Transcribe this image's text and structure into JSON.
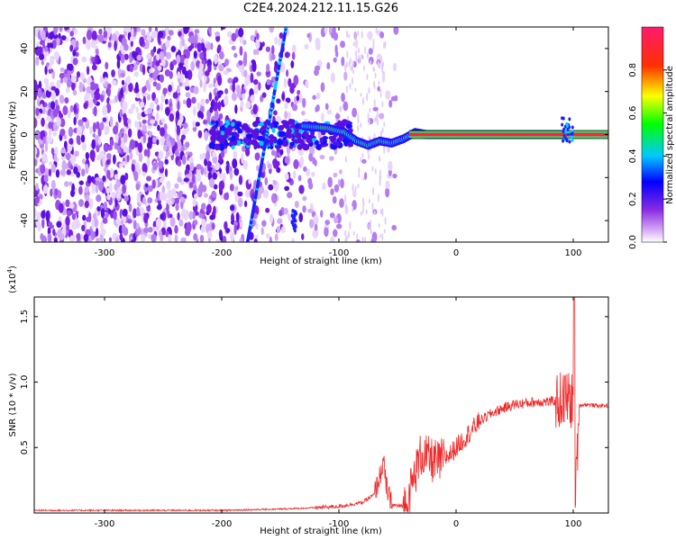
{
  "title": "C2E4.2024.212.11.15.G26",
  "chart_data": [
    {
      "type": "heatmap",
      "xlabel": "Height of straight line (km)",
      "ylabel": "Frequency (Hz)",
      "xlim": [
        -360,
        130
      ],
      "ylim": [
        -50,
        50
      ],
      "xticks": [
        -300,
        -200,
        -100,
        0,
        100
      ],
      "yticks": [
        -40,
        -20,
        0,
        20,
        40
      ],
      "colorbar": {
        "label": "Normalized spectral amplitude",
        "range": [
          0.0,
          1.0
        ],
        "ticks": [
          0.0,
          0.2,
          0.4,
          0.6,
          0.8
        ],
        "colors": [
          "#ffffff",
          "#cfa8f4",
          "#8a2be2",
          "#0000ff",
          "#00e5ff",
          "#00ff00",
          "#ffff00",
          "#ff0000",
          "#ff1493"
        ]
      },
      "features": {
        "noise_region_x": [
          -360,
          -90
        ],
        "carrier_line": {
          "x": [
            -40,
            130
          ],
          "frequency": 0
        },
        "signal_trace": [
          [
            -130,
            4
          ],
          [
            -110,
            3
          ],
          [
            -95,
            1
          ],
          [
            -85,
            -3
          ],
          [
            -75,
            -5
          ],
          [
            -65,
            -3
          ],
          [
            -55,
            -4
          ],
          [
            -45,
            -2
          ],
          [
            -35,
            1
          ],
          [
            -25,
            0
          ],
          [
            0,
            0
          ],
          [
            95,
            0
          ]
        ],
        "slanted_line": {
          "from": [
            -178,
            -50
          ],
          "to": [
            -145,
            50
          ]
        }
      }
    },
    {
      "type": "line",
      "xlabel": "Height of straight line (km)",
      "ylabel": "SNR (10 * v/v)",
      "multiplier_label": "(x10",
      "multiplier_exp": "4",
      "xlim": [
        -360,
        130
      ],
      "ylim": [
        0,
        1.65
      ],
      "xticks": [
        -300,
        -200,
        -100,
        0,
        100
      ],
      "yticks": [
        0.5,
        1.0,
        1.5
      ],
      "ytick_labels": [
        "0.5",
        "1.0",
        "1.5"
      ],
      "color": "#ee2b2b",
      "series": [
        {
          "x": [
            -360,
            -300,
            -250,
            -200,
            -150,
            -120,
            -100,
            -80,
            -70,
            -65,
            -62,
            -60,
            -57,
            -55,
            -45,
            -40,
            -35,
            -30,
            -25,
            -20,
            -15,
            -10,
            -5,
            0,
            10,
            20,
            30,
            40,
            50,
            60,
            70,
            80,
            90,
            95,
            100,
            102,
            105,
            110,
            120,
            130
          ],
          "y": [
            0.02,
            0.02,
            0.02,
            0.02,
            0.03,
            0.04,
            0.05,
            0.08,
            0.14,
            0.28,
            0.4,
            0.22,
            0.12,
            0.06,
            0.05,
            0.14,
            0.3,
            0.45,
            0.42,
            0.4,
            0.38,
            0.42,
            0.45,
            0.5,
            0.6,
            0.7,
            0.76,
            0.8,
            0.83,
            0.84,
            0.85,
            0.85,
            0.86,
            0.88,
            0.84,
            0.12,
            0.82,
            0.83,
            0.82,
            0.82
          ]
        }
      ]
    }
  ]
}
